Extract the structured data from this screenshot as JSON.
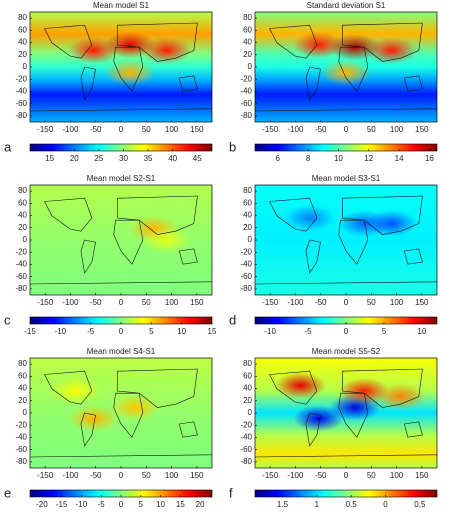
{
  "chart_data": [
    {
      "type": "heatmap",
      "title": "Mean model S1",
      "letter": "a",
      "xlim": [
        -180,
        180
      ],
      "xticks": [
        -150,
        -100,
        -50,
        0,
        50,
        100,
        150
      ],
      "ylim": [
        -90,
        90
      ],
      "yticks": [
        -80,
        -60,
        -40,
        -20,
        0,
        20,
        40,
        60,
        80
      ],
      "clim": [
        11,
        48
      ],
      "cticks": [
        15,
        20,
        25,
        30,
        35,
        40,
        45
      ]
    },
    {
      "type": "heatmap",
      "title": "Standard deviation S1",
      "letter": "b",
      "xlim": [
        -180,
        180
      ],
      "xticks": [
        -150,
        -100,
        -50,
        0,
        50,
        100,
        150
      ],
      "ylim": [
        -90,
        90
      ],
      "yticks": [
        -80,
        -60,
        -40,
        -20,
        0,
        20,
        40,
        60,
        80
      ],
      "clim": [
        4.5,
        16.5
      ],
      "cticks": [
        6,
        8,
        10,
        12,
        14,
        16
      ]
    },
    {
      "type": "heatmap",
      "title": "Mean model S2-S1",
      "letter": "c",
      "xlim": [
        -180,
        180
      ],
      "xticks": [
        -150,
        -100,
        -50,
        0,
        50,
        100,
        150
      ],
      "ylim": [
        -90,
        90
      ],
      "yticks": [
        -80,
        -60,
        -40,
        -20,
        0,
        20,
        40,
        60,
        80
      ],
      "clim": [
        -15,
        15
      ],
      "cticks": [
        -15,
        -10,
        -5,
        0,
        5,
        10,
        15
      ]
    },
    {
      "type": "heatmap",
      "title": "Mean model S3-S1",
      "letter": "d",
      "xlim": [
        -180,
        180
      ],
      "xticks": [
        -150,
        -100,
        -50,
        0,
        50,
        100,
        150
      ],
      "ylim": [
        -90,
        90
      ],
      "yticks": [
        -80,
        -60,
        -40,
        -20,
        0,
        20,
        40,
        60,
        80
      ],
      "clim": [
        -12,
        12
      ],
      "cticks": [
        -10,
        -5,
        0,
        5,
        10
      ]
    },
    {
      "type": "heatmap",
      "title": "Mean model S4-S1",
      "letter": "e",
      "xlim": [
        -180,
        180
      ],
      "xticks": [
        -150,
        -100,
        -50,
        0,
        50,
        100,
        150
      ],
      "ylim": [
        -90,
        90
      ],
      "yticks": [
        -80,
        -60,
        -40,
        -20,
        0,
        20,
        40,
        60,
        80
      ],
      "clim": [
        -23,
        23
      ],
      "cticks": [
        -20,
        -15,
        -10,
        -5,
        0,
        5,
        10,
        15,
        20
      ]
    },
    {
      "type": "heatmap",
      "title": "Mean model S5-S2",
      "letter": "f",
      "xlim": [
        -180,
        180
      ],
      "xticks": [
        -150,
        -100,
        -50,
        0,
        50,
        100,
        150
      ],
      "ylim": [
        -90,
        90
      ],
      "yticks": [
        -80,
        -60,
        -40,
        -20,
        0,
        20,
        40,
        60,
        80
      ],
      "clim": [
        -1.9,
        0.75
      ],
      "cticks": [
        {
          "value": -1.5,
          "label": "1.5"
        },
        {
          "value": -1,
          "label": "1"
        },
        {
          "value": -0.5,
          "label": "0.5"
        },
        0,
        0.5
      ]
    }
  ]
}
